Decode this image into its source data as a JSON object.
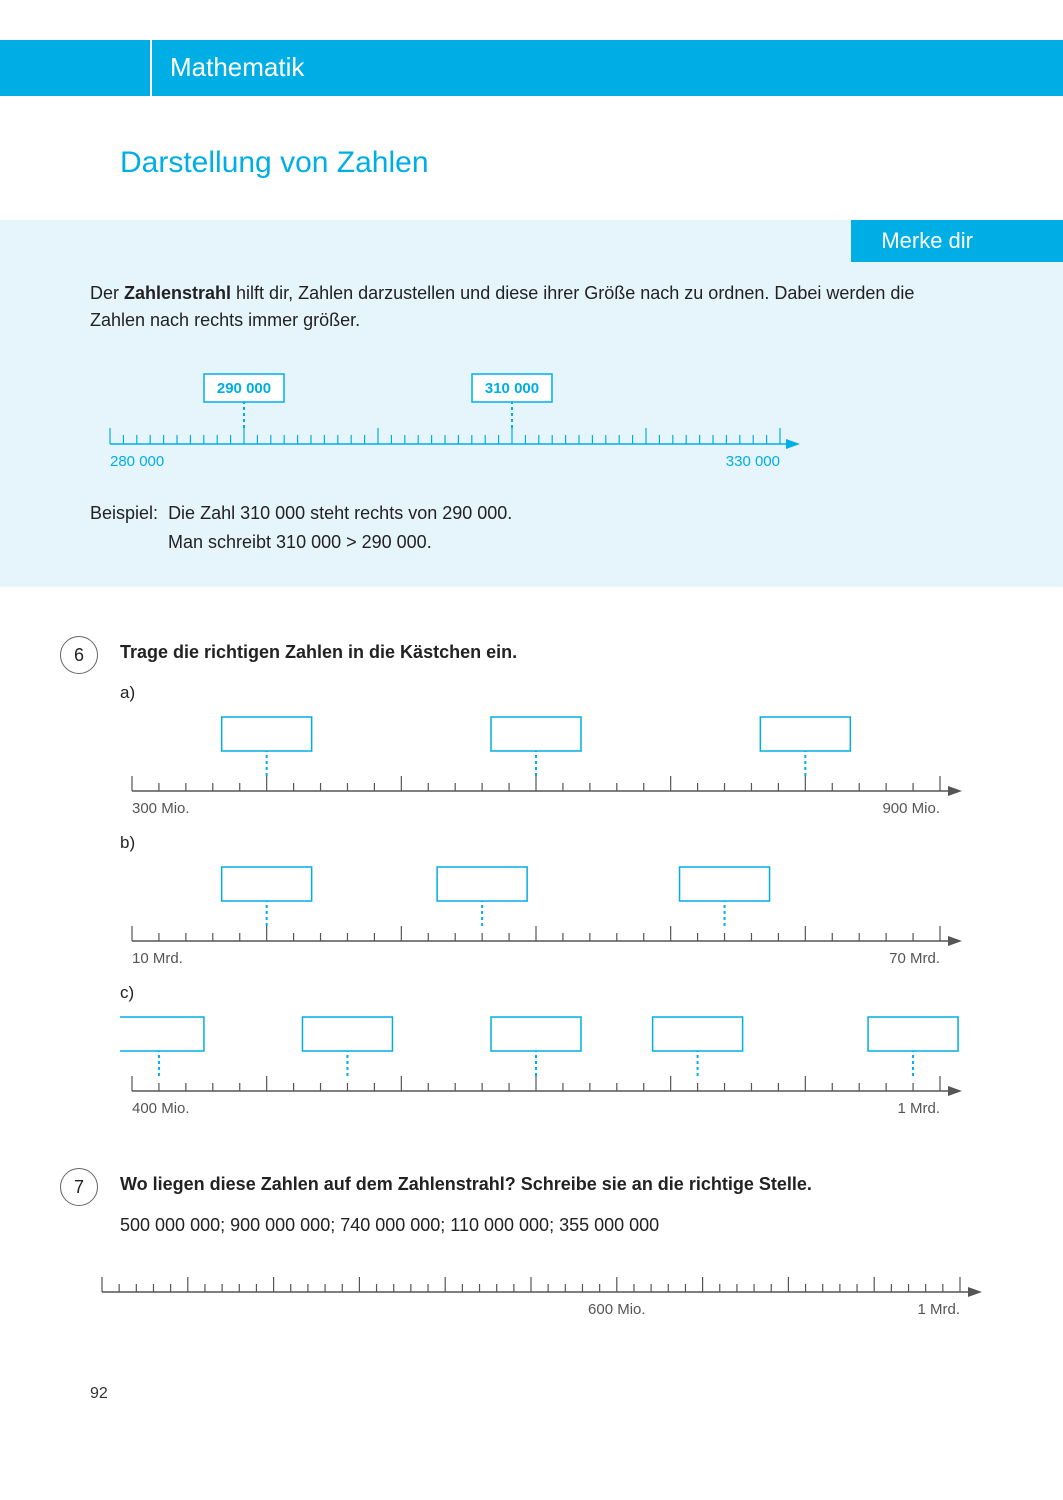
{
  "colors": {
    "brand": "#00aee6",
    "brand_light": "#e6f5fc",
    "axis": "#555555",
    "axis_teal": "#00aee6",
    "box_border": "#00aee6",
    "label_gray": "#555555"
  },
  "header": {
    "subject": "Mathematik"
  },
  "section_title": "Darstellung von Zahlen",
  "merke": {
    "tab": "Merke dir",
    "intro_html": "Der <b>Zahlenstrahl</b> hilft dir, Zahlen darzustellen und diese ihrer Größe nach zu ordnen. Dabei werden die Zahlen nach rechts immer größer.",
    "example_line": {
      "start_label": "280 000",
      "end_label": "330 000",
      "start": 280000,
      "end": 330000,
      "major_step": 10000,
      "minor_step": 1000,
      "boxes": [
        {
          "value": 290000,
          "label": "290 000"
        },
        {
          "value": 310000,
          "label": "310 000"
        }
      ],
      "color": "#00aee6"
    },
    "beispiel_label": "Beispiel:",
    "beispiel_l1": "Die Zahl 310 000 steht rechts von 290 000.",
    "beispiel_l2": "Man schreibt  310 000 > 290 000."
  },
  "ex6": {
    "number": "6",
    "title": "Trage die richtigen Zahlen in die Kästchen ein.",
    "parts": {
      "a": {
        "label": "a)",
        "start": 300,
        "end": 900,
        "major_step": 100,
        "minor_step": 20,
        "start_label": "300 Mio.",
        "end_label": "900 Mio.",
        "boxes_at": [
          400,
          600,
          800
        ]
      },
      "b": {
        "label": "b)",
        "start": 10,
        "end": 70,
        "major_step": 10,
        "minor_step": 2,
        "start_label": "10 Mrd.",
        "end_label": "70 Mrd.",
        "boxes_at": [
          20,
          36,
          54
        ]
      },
      "c": {
        "label": "c)",
        "start": 400,
        "end": 1000,
        "major_step": 100,
        "minor_step": 20,
        "start_label": "400 Mio.",
        "end_label": "1 Mrd.",
        "boxes_at": [
          420,
          560,
          700,
          820,
          980
        ]
      }
    }
  },
  "ex7": {
    "number": "7",
    "title": "Wo liegen diese Zahlen auf dem Zahlenstrahl? Schreibe sie an die richtige Stelle.",
    "numbers": "500 000 000;  900 000 000;  740 000 000;  110 000 000;  355 000 000",
    "line": {
      "start": 0,
      "end": 1000,
      "major_step": 100,
      "minor_step": 20,
      "mid_label": "600 Mio.",
      "mid_at": 600,
      "end_label": "1 Mrd."
    }
  },
  "page_number": "92"
}
